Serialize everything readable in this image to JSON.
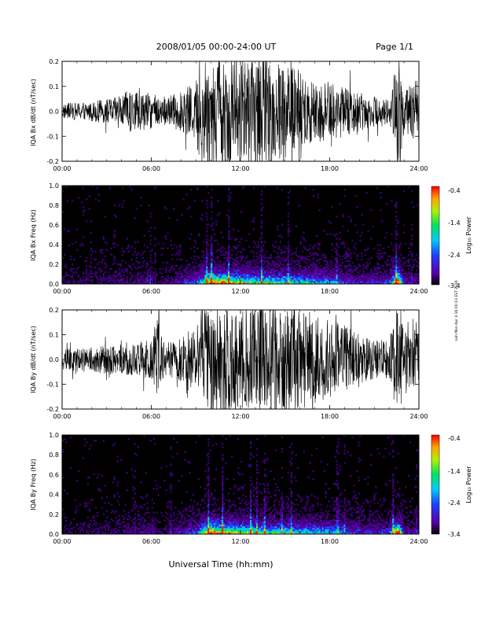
{
  "header": {
    "title": "2008/01/05  00:00-24:00 UT",
    "page": "Page 1/1"
  },
  "side_note": "nah Mon Apr 4 16:00:13 EST 2016",
  "xlabel": "Universal Time (hh:mm)",
  "chart_data": [
    {
      "type": "line",
      "ylabel": "IQA Bx dB/dt (nT/sec)",
      "xlim": [
        0,
        24
      ],
      "ylim": [
        -0.2,
        0.2
      ],
      "x_ticks": [
        "00:00",
        "06:00",
        "12:00",
        "18:00",
        "24:00"
      ],
      "y_ticks": [
        "-0.2",
        "-0.1",
        "0.0",
        "0.1",
        "0.2"
      ],
      "envelope": {
        "x_hours": [
          0,
          1,
          2,
          3,
          4,
          4.5,
          5,
          6,
          7,
          8,
          9,
          9.2,
          9.5,
          10,
          11,
          12,
          13,
          14,
          15,
          16,
          17,
          18,
          19,
          20,
          21,
          22,
          22.5,
          22.8,
          23,
          24
        ],
        "amplitude": [
          0.03,
          0.035,
          0.04,
          0.05,
          0.06,
          0.09,
          0.08,
          0.07,
          0.06,
          0.08,
          0.12,
          0.2,
          0.22,
          0.22,
          0.22,
          0.22,
          0.22,
          0.22,
          0.2,
          0.16,
          0.13,
          0.12,
          0.1,
          0.08,
          0.06,
          0.05,
          0.22,
          0.22,
          0.08,
          0.14
        ]
      }
    },
    {
      "type": "heatmap",
      "ylabel": "IQA Bx Freq (Hz)",
      "xlim": [
        0,
        24
      ],
      "ylim": [
        0,
        1.0
      ],
      "x_ticks": [
        "00:00",
        "06:00",
        "12:00",
        "18:00",
        "24:00"
      ],
      "y_ticks": [
        "0.0",
        "0.2",
        "0.4",
        "0.6",
        "0.8",
        "1.0"
      ],
      "colorbar": {
        "label": "Log₁₀ Power",
        "ticks": [
          "-0.4",
          "-1.4",
          "-2.4",
          "-3.4"
        ],
        "range": [
          -3.4,
          -0.4
        ]
      }
    },
    {
      "type": "line",
      "ylabel": "IQA By dB/dt (nT/sec)",
      "xlim": [
        0,
        24
      ],
      "ylim": [
        -0.2,
        0.2
      ],
      "x_ticks": [
        "00:00",
        "06:00",
        "12:00",
        "18:00",
        "24:00"
      ],
      "y_ticks": [
        "-0.2",
        "-0.1",
        "0.0",
        "0.1",
        "0.2"
      ],
      "envelope": {
        "x_hours": [
          0,
          1,
          2,
          3,
          4,
          5,
          6,
          6.3,
          6.6,
          7,
          8,
          9,
          9.5,
          10,
          11,
          12,
          13,
          14,
          15,
          16,
          17,
          18,
          19,
          20,
          21,
          22,
          22.5,
          22.8,
          23,
          24
        ],
        "amplitude": [
          0.04,
          0.05,
          0.05,
          0.06,
          0.06,
          0.07,
          0.08,
          0.2,
          0.1,
          0.07,
          0.09,
          0.14,
          0.22,
          0.22,
          0.22,
          0.22,
          0.22,
          0.22,
          0.22,
          0.2,
          0.18,
          0.16,
          0.14,
          0.1,
          0.08,
          0.08,
          0.22,
          0.22,
          0.12,
          0.12
        ]
      }
    },
    {
      "type": "heatmap",
      "ylabel": "IQA By Freq (Hz)",
      "xlim": [
        0,
        24
      ],
      "ylim": [
        0,
        1.0
      ],
      "x_ticks": [
        "00:00",
        "06:00",
        "12:00",
        "18:00",
        "24:00"
      ],
      "y_ticks": [
        "0.0",
        "0.2",
        "0.4",
        "0.6",
        "0.8",
        "1.0"
      ],
      "colorbar": {
        "label": "Log₁₀ Power",
        "ticks": [
          "-0.4",
          "-1.4",
          "-2.4",
          "-3.4"
        ],
        "range": [
          -3.4,
          -0.4
        ]
      }
    }
  ]
}
